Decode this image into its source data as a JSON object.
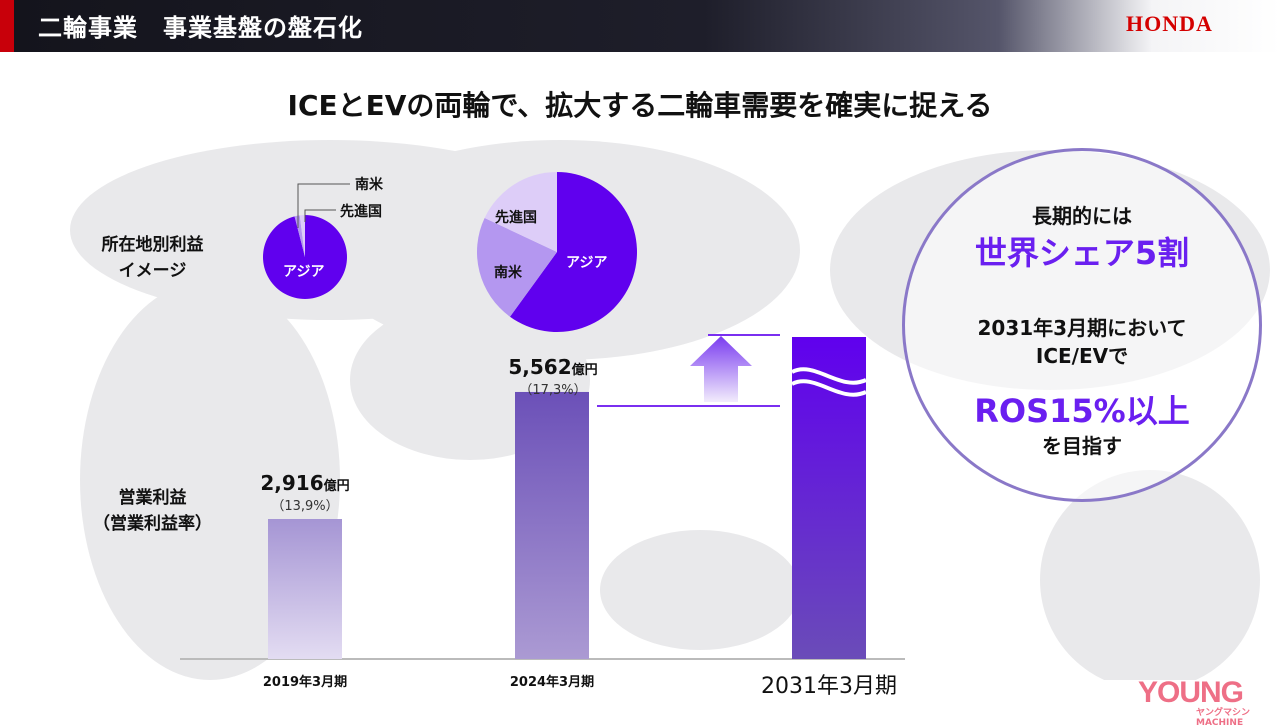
{
  "header": {
    "title": "二輪事業　事業基盤の盤石化",
    "logo": "HONDA",
    "accent": "#c8000a"
  },
  "main_title": "ICEとEVの両輪で、拡大する二輪車需要を確実に捉える",
  "labels": {
    "pie_label": [
      "所在地別利益",
      "イメージ"
    ],
    "bar_label": [
      "営業利益",
      "（営業利益率）"
    ]
  },
  "pies": [
    {
      "period": "2019年3月期",
      "slices": [
        {
          "name": "アジア",
          "share": 0.96
        },
        {
          "name": "南米",
          "share": 0.02
        },
        {
          "name": "先進国",
          "share": 0.02
        }
      ]
    },
    {
      "period": "2024年3月期",
      "slices": [
        {
          "name": "アジア",
          "share": 0.6
        },
        {
          "name": "南米",
          "share": 0.22
        },
        {
          "name": "先進国",
          "share": 0.18
        }
      ]
    }
  ],
  "pie_colors": {
    "アジア": "#6000ee",
    "南米": "#b497f0",
    "先進国": "#ddcdf8"
  },
  "chart_data": {
    "type": "bar",
    "categories": [
      "2019年3月期",
      "2024年3月期",
      "2031年3月期"
    ],
    "values": [
      2916,
      5562,
      null
    ],
    "value_labels": [
      "2,916",
      "5,562",
      ""
    ],
    "unit": "億円",
    "margin_labels": [
      "（13,9%）",
      "（17,3%）",
      ""
    ],
    "xlabel": "",
    "ylabel": "",
    "axis_break_on": "2031年3月期"
  },
  "target": {
    "line1": "長期的には",
    "line2": "世界シェア5割",
    "line3": "2031年3月期において",
    "line4": "ICE/EVで",
    "line5": "ROS15%以上",
    "line6": "を目指す"
  },
  "watermark": {
    "text": "YOUNG",
    "sub": "ヤングマシン MACHINE"
  }
}
